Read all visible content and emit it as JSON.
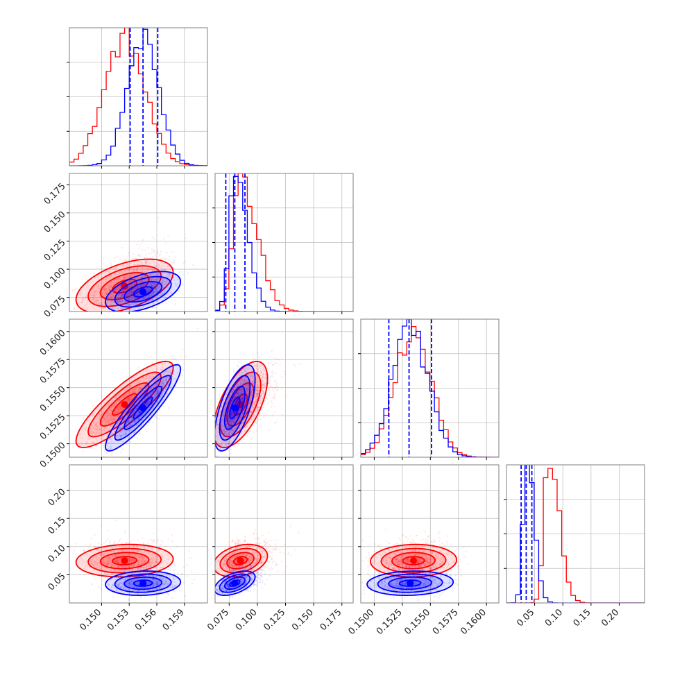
{
  "chart_data": {
    "type": "corner",
    "grid": true,
    "colors": {
      "red": "#ff0000",
      "blue": "#0000ff",
      "axis": "#7f7f7f",
      "grid": "#bfbfbf"
    },
    "parameters": [
      {
        "range": [
          0.1465,
          0.1615
        ],
        "ticks": [
          0.15,
          0.153,
          0.156,
          0.159
        ],
        "ticklabels": [
          "0.150",
          "0.153",
          "0.156",
          "0.159"
        ]
      },
      {
        "range": [
          0.0625,
          0.185
        ],
        "ticks": [
          0.075,
          0.1,
          0.125,
          0.15,
          0.175
        ],
        "ticklabels": [
          "0.075",
          "0.100",
          "0.125",
          "0.150",
          "0.175"
        ]
      },
      {
        "range": [
          0.1488,
          0.1611
        ],
        "ticks": [
          0.15,
          0.1525,
          0.155,
          0.1575,
          0.16
        ],
        "ticklabels": [
          "0.1500",
          "0.1525",
          "0.1550",
          "0.1575",
          "0.1600"
        ]
      },
      {
        "range": [
          0.0,
          0.245
        ],
        "ticks": [
          0.05,
          0.1,
          0.15,
          0.2
        ],
        "ticklabels": [
          "0.05",
          "0.10",
          "0.15",
          "0.20"
        ]
      }
    ],
    "series": [
      {
        "color": "red",
        "means": [
          0.1525,
          0.085,
          0.1535,
          0.075
        ],
        "sds": [
          0.0022,
          0.01,
          0.0016,
          0.012
        ],
        "correlations": {
          "1,0": 0.5,
          "2,0": 0.85,
          "2,1": 0.6,
          "3,0": 0.1,
          "3,1": 0.3,
          "3,2": 0.05
        }
      },
      {
        "color": "blue",
        "means": [
          0.1545,
          0.08,
          0.1532,
          0.035
        ],
        "sds": [
          0.0017,
          0.0075,
          0.0016,
          0.009
        ],
        "correlations": {
          "1,0": 0.5,
          "2,0": 0.9,
          "2,1": 0.65,
          "3,0": 0.1,
          "3,1": 0.5,
          "3,2": 0.1
        }
      }
    ],
    "quantile_lines": [
      [
        0.1531,
        0.1545,
        0.1561
      ],
      [
        0.072,
        0.08,
        0.089
      ],
      [
        0.1513,
        0.1531,
        0.1551
      ],
      [
        0.026,
        0.035,
        0.045
      ]
    ]
  }
}
